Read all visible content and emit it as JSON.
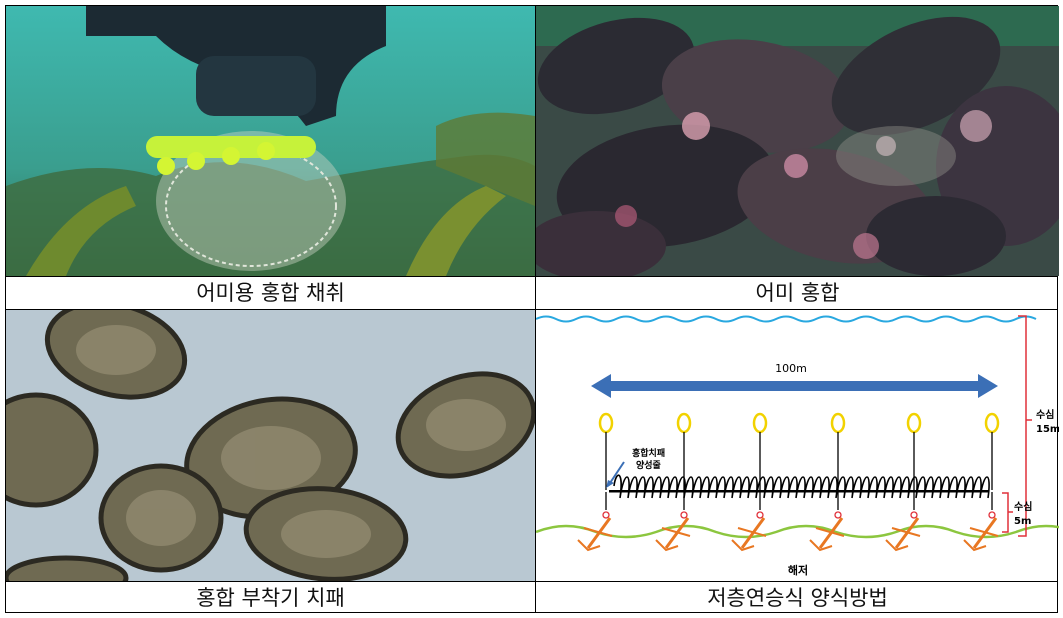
{
  "captions": {
    "top_left": "어미용 홍합 채취",
    "top_right": "어미 홍합",
    "bottom_left": "홍합 부착기 치패",
    "bottom_right": "저층연승식 양식방법"
  },
  "diagram": {
    "length_label": "100m",
    "seed_line_label_1": "홍합치패",
    "seed_line_label_2": "양성줄",
    "depth_total_label_1": "수심",
    "depth_total_label_2": "15m",
    "depth_line_label_1": "수심",
    "depth_line_label_2": "5m",
    "seabed_label": "해저",
    "colors": {
      "water_surface": "#29a8e0",
      "arrow": "#3b6fb6",
      "buoy": "#f2d200",
      "seabed": "#8cc63f",
      "anchor": "#e87722",
      "bracket": "#e0303a"
    }
  }
}
